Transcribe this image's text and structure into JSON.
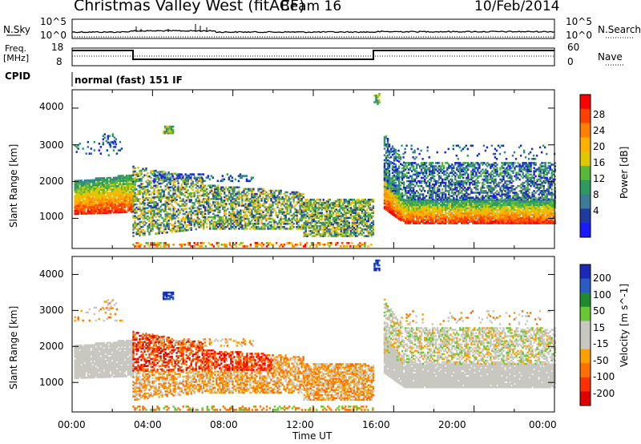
{
  "header": {
    "station": "Christmas Valley West (fitACF)",
    "beam": "Beam 16",
    "date": "10/Feb/2014"
  },
  "panels": {
    "nsky_label": "N.Sky",
    "nsearch_label": "N.Search",
    "freq_label_line1": "Freq.",
    "freq_label_line2": "[MHz]",
    "nave_label": "Nave",
    "cpid_label": "CPID",
    "cpid_text": "normal (fast) 151 IF",
    "noise_ticks_left": [
      "10^5",
      "10^0"
    ],
    "noise_ticks_right": [
      "10^5",
      "10^0"
    ],
    "freq_ticks_left": [
      "18",
      "8"
    ],
    "freq_ticks_right": [
      "60",
      "0"
    ]
  },
  "chart_data": [
    {
      "type": "heatmap",
      "name": "Power",
      "ylabel": "Slant Range [km]",
      "yticks": [
        "4000",
        "3000",
        "2000",
        "1000"
      ],
      "ylim": [
        180,
        4500
      ],
      "colorbar_label": "Power [dB]",
      "colorbar_ticks": [
        "28",
        "24",
        "20",
        "16",
        "12",
        "8",
        "4"
      ],
      "colorbar_colors": [
        "#ff0000",
        "#ff4000",
        "#ff8000",
        "#ffb000",
        "#e0c800",
        "#58b838",
        "#2e9a5e",
        "#3a7c9a",
        "#1e3ca0",
        "#1a1aff"
      ],
      "clim": [
        0,
        30
      ]
    },
    {
      "type": "heatmap",
      "name": "Velocity",
      "ylabel": "Slant Range [km]",
      "yticks": [
        "4000",
        "3000",
        "2000",
        "1000"
      ],
      "ylim": [
        180,
        4500
      ],
      "colorbar_label": "Velocity [m s^-1]",
      "colorbar_ticks": [
        "200",
        "100",
        "50",
        "15",
        "-15",
        "-50",
        "-100",
        "-200"
      ],
      "colorbar_colors": [
        "#1a2ab8",
        "#2a5cc8",
        "#1e8c2e",
        "#68c830",
        "#c8c8c0",
        "#c8c8c0",
        "#ffa000",
        "#ff7000",
        "#ff3000",
        "#e00000"
      ],
      "clim": [
        -250,
        250
      ]
    }
  ],
  "time_axis": {
    "xlabel": "Time UT",
    "ticks": [
      "00:00",
      "04:00",
      "08:00",
      "12:00",
      "16:00",
      "20:00",
      "00:00"
    ]
  },
  "colors": {
    "axis": "#000000",
    "velocity_ground": "#c8c8c0"
  }
}
